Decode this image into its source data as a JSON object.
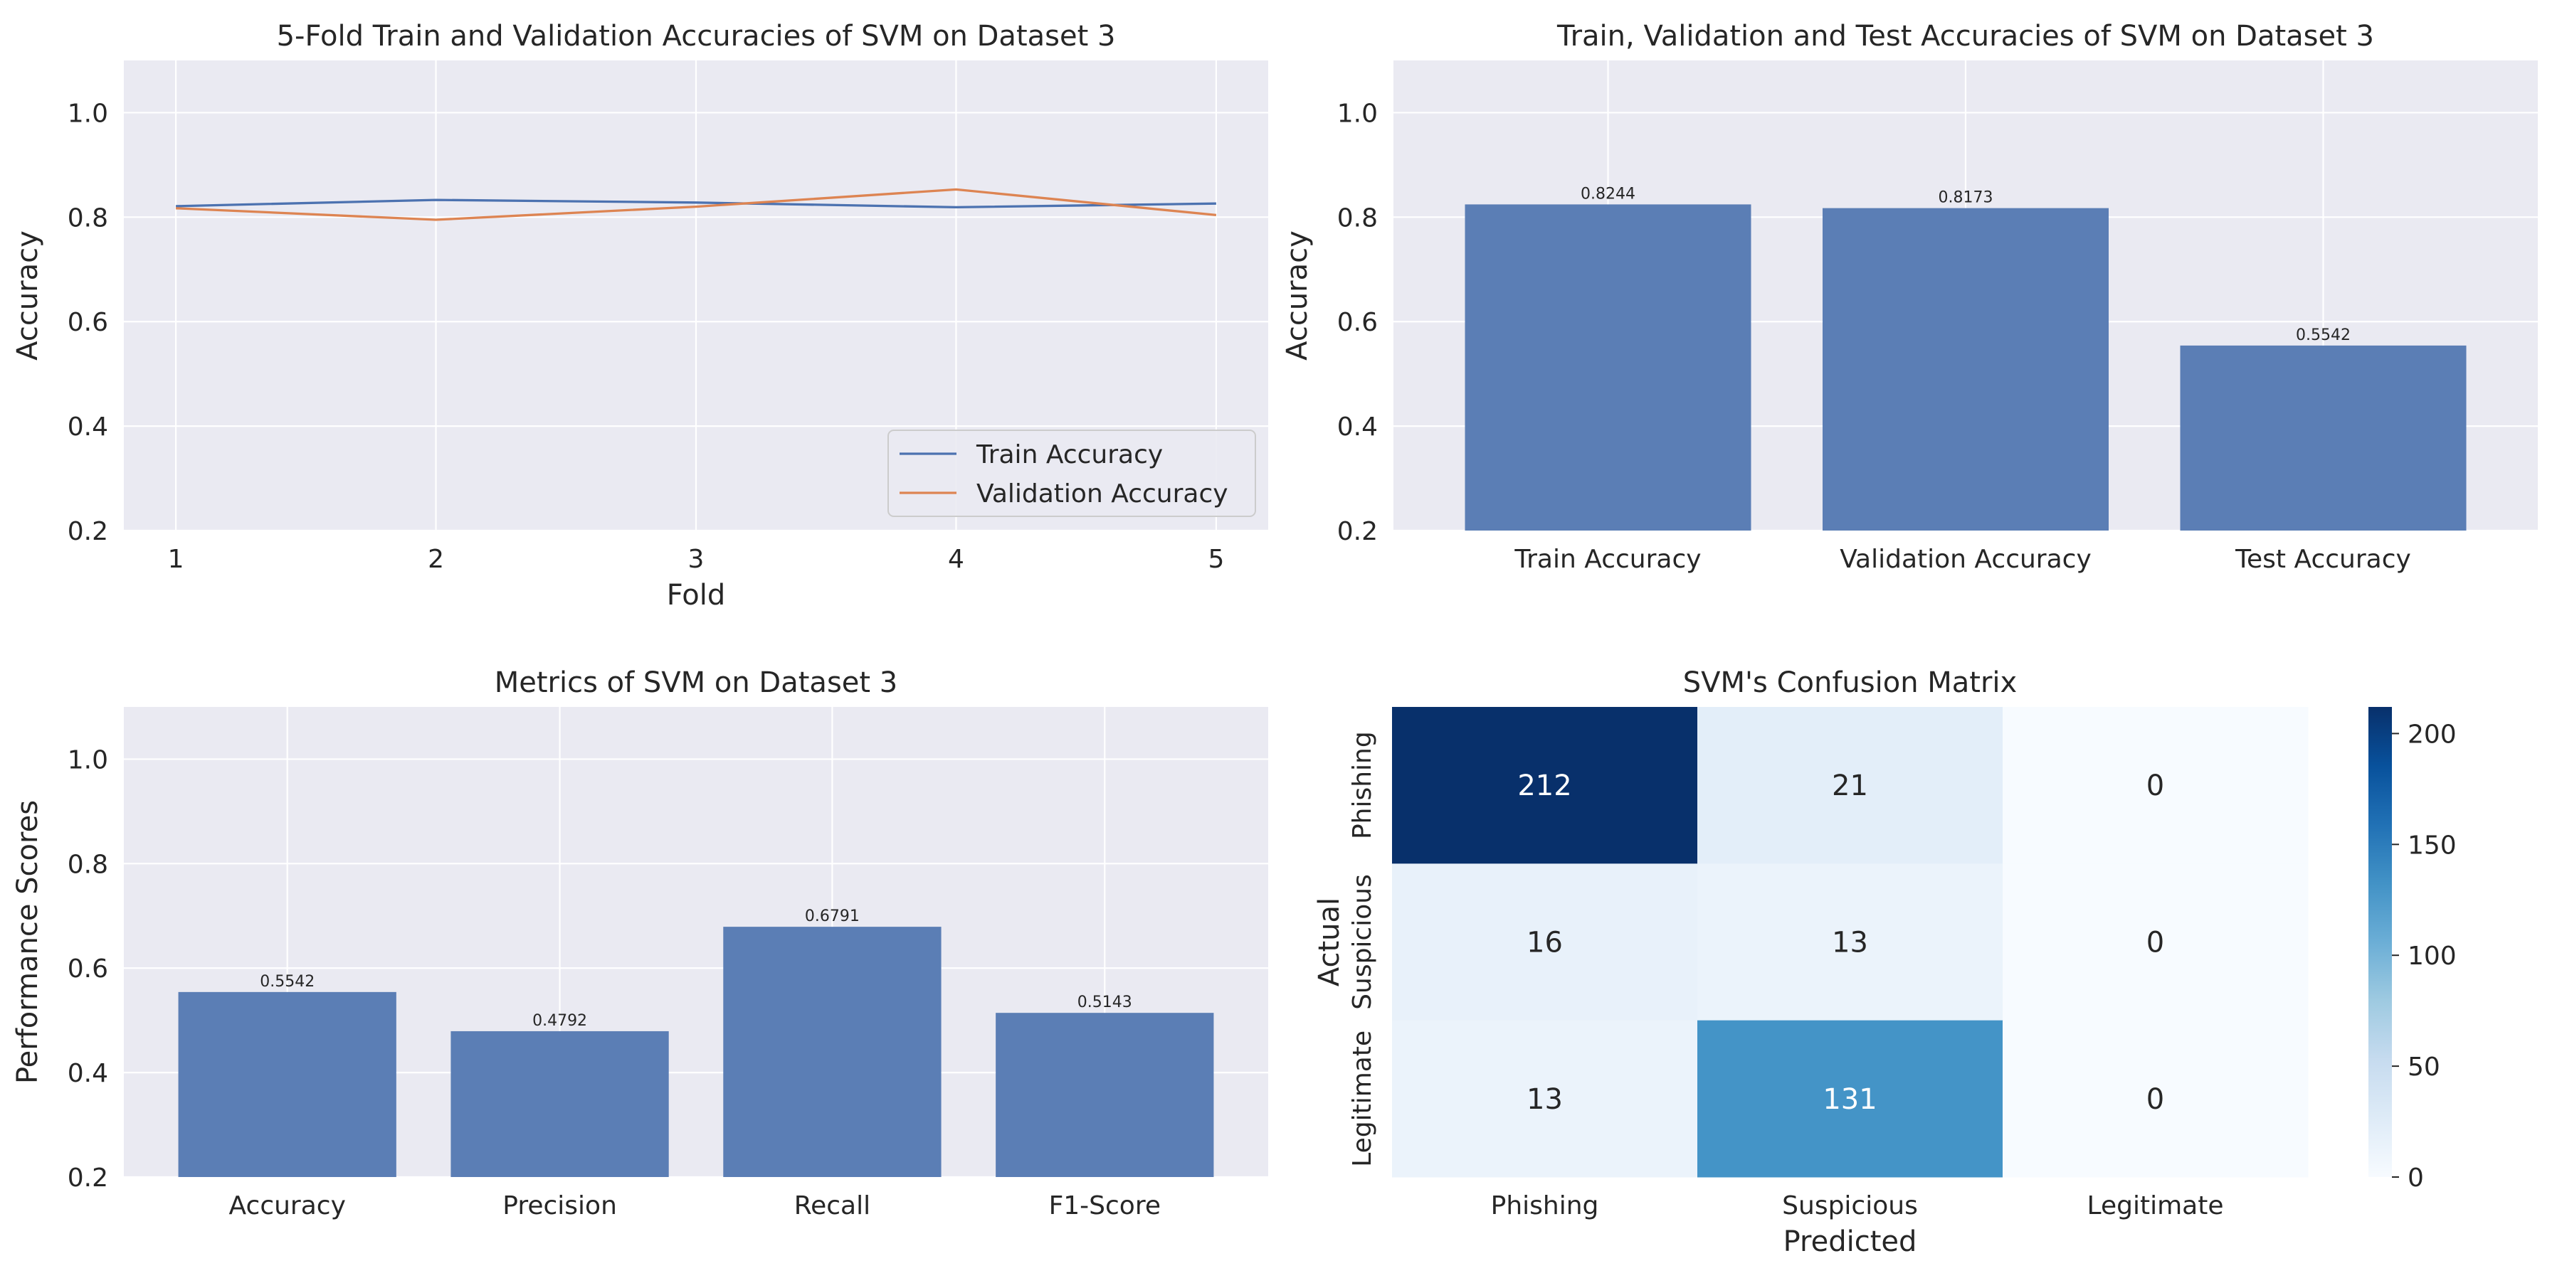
{
  "chart_data": [
    {
      "type": "line",
      "title": "5-Fold Train and Validation Accuracies of SVM on Dataset 3",
      "xlabel": "Fold",
      "ylabel": "Accuracy",
      "x": [
        1,
        2,
        3,
        4,
        5
      ],
      "xticks": [
        1,
        2,
        3,
        4,
        5
      ],
      "ylim": [
        0.2,
        1.1
      ],
      "yticks": [
        0.2,
        0.4,
        0.6,
        0.8,
        1.0
      ],
      "grid": true,
      "legend_position": "lower-right",
      "series": [
        {
          "name": "Train Accuracy",
          "color": "#4c72b0",
          "values": [
            0.821,
            0.833,
            0.828,
            0.819,
            0.826
          ]
        },
        {
          "name": "Validation Accuracy",
          "color": "#dd8452",
          "values": [
            0.817,
            0.795,
            0.82,
            0.853,
            0.804
          ]
        }
      ]
    },
    {
      "type": "bar",
      "title": "Train, Validation and Test Accuracies of SVM on Dataset 3",
      "xlabel": "",
      "ylabel": "Accuracy",
      "categories": [
        "Train Accuracy",
        "Validation Accuracy",
        "Test Accuracy"
      ],
      "values": [
        0.8244,
        0.8173,
        0.5542
      ],
      "labels": [
        "0.8244",
        "0.8173",
        "0.5542"
      ],
      "ylim": [
        0.2,
        1.1
      ],
      "yticks": [
        0.2,
        0.4,
        0.6,
        0.8,
        1.0
      ],
      "color": "#5b7eb5",
      "grid": true
    },
    {
      "type": "bar",
      "title": "Metrics of SVM on Dataset 3",
      "xlabel": "",
      "ylabel": "Performance Scores",
      "categories": [
        "Accuracy",
        "Precision",
        "Recall",
        "F1-Score"
      ],
      "values": [
        0.5542,
        0.4792,
        0.6791,
        0.5143
      ],
      "labels": [
        "0.5542",
        "0.4792",
        "0.6791",
        "0.5143"
      ],
      "ylim": [
        0.2,
        1.1
      ],
      "yticks": [
        0.2,
        0.4,
        0.6,
        0.8,
        1.0
      ],
      "color": "#5b7eb5",
      "grid": true
    },
    {
      "type": "heatmap",
      "title": "SVM's Confusion Matrix",
      "xlabel": "Predicted",
      "ylabel": "Actual",
      "x_categories": [
        "Phishing",
        "Suspicious",
        "Legitimate"
      ],
      "y_categories": [
        "Phishing",
        "Suspicious",
        "Legitimate"
      ],
      "values": [
        [
          212,
          21,
          0
        ],
        [
          16,
          13,
          0
        ],
        [
          13,
          131,
          0
        ]
      ],
      "colormap": "Blues",
      "vmin": 0,
      "vmax": 212,
      "colorbar_ticks": [
        0,
        50,
        100,
        150,
        200
      ]
    }
  ]
}
